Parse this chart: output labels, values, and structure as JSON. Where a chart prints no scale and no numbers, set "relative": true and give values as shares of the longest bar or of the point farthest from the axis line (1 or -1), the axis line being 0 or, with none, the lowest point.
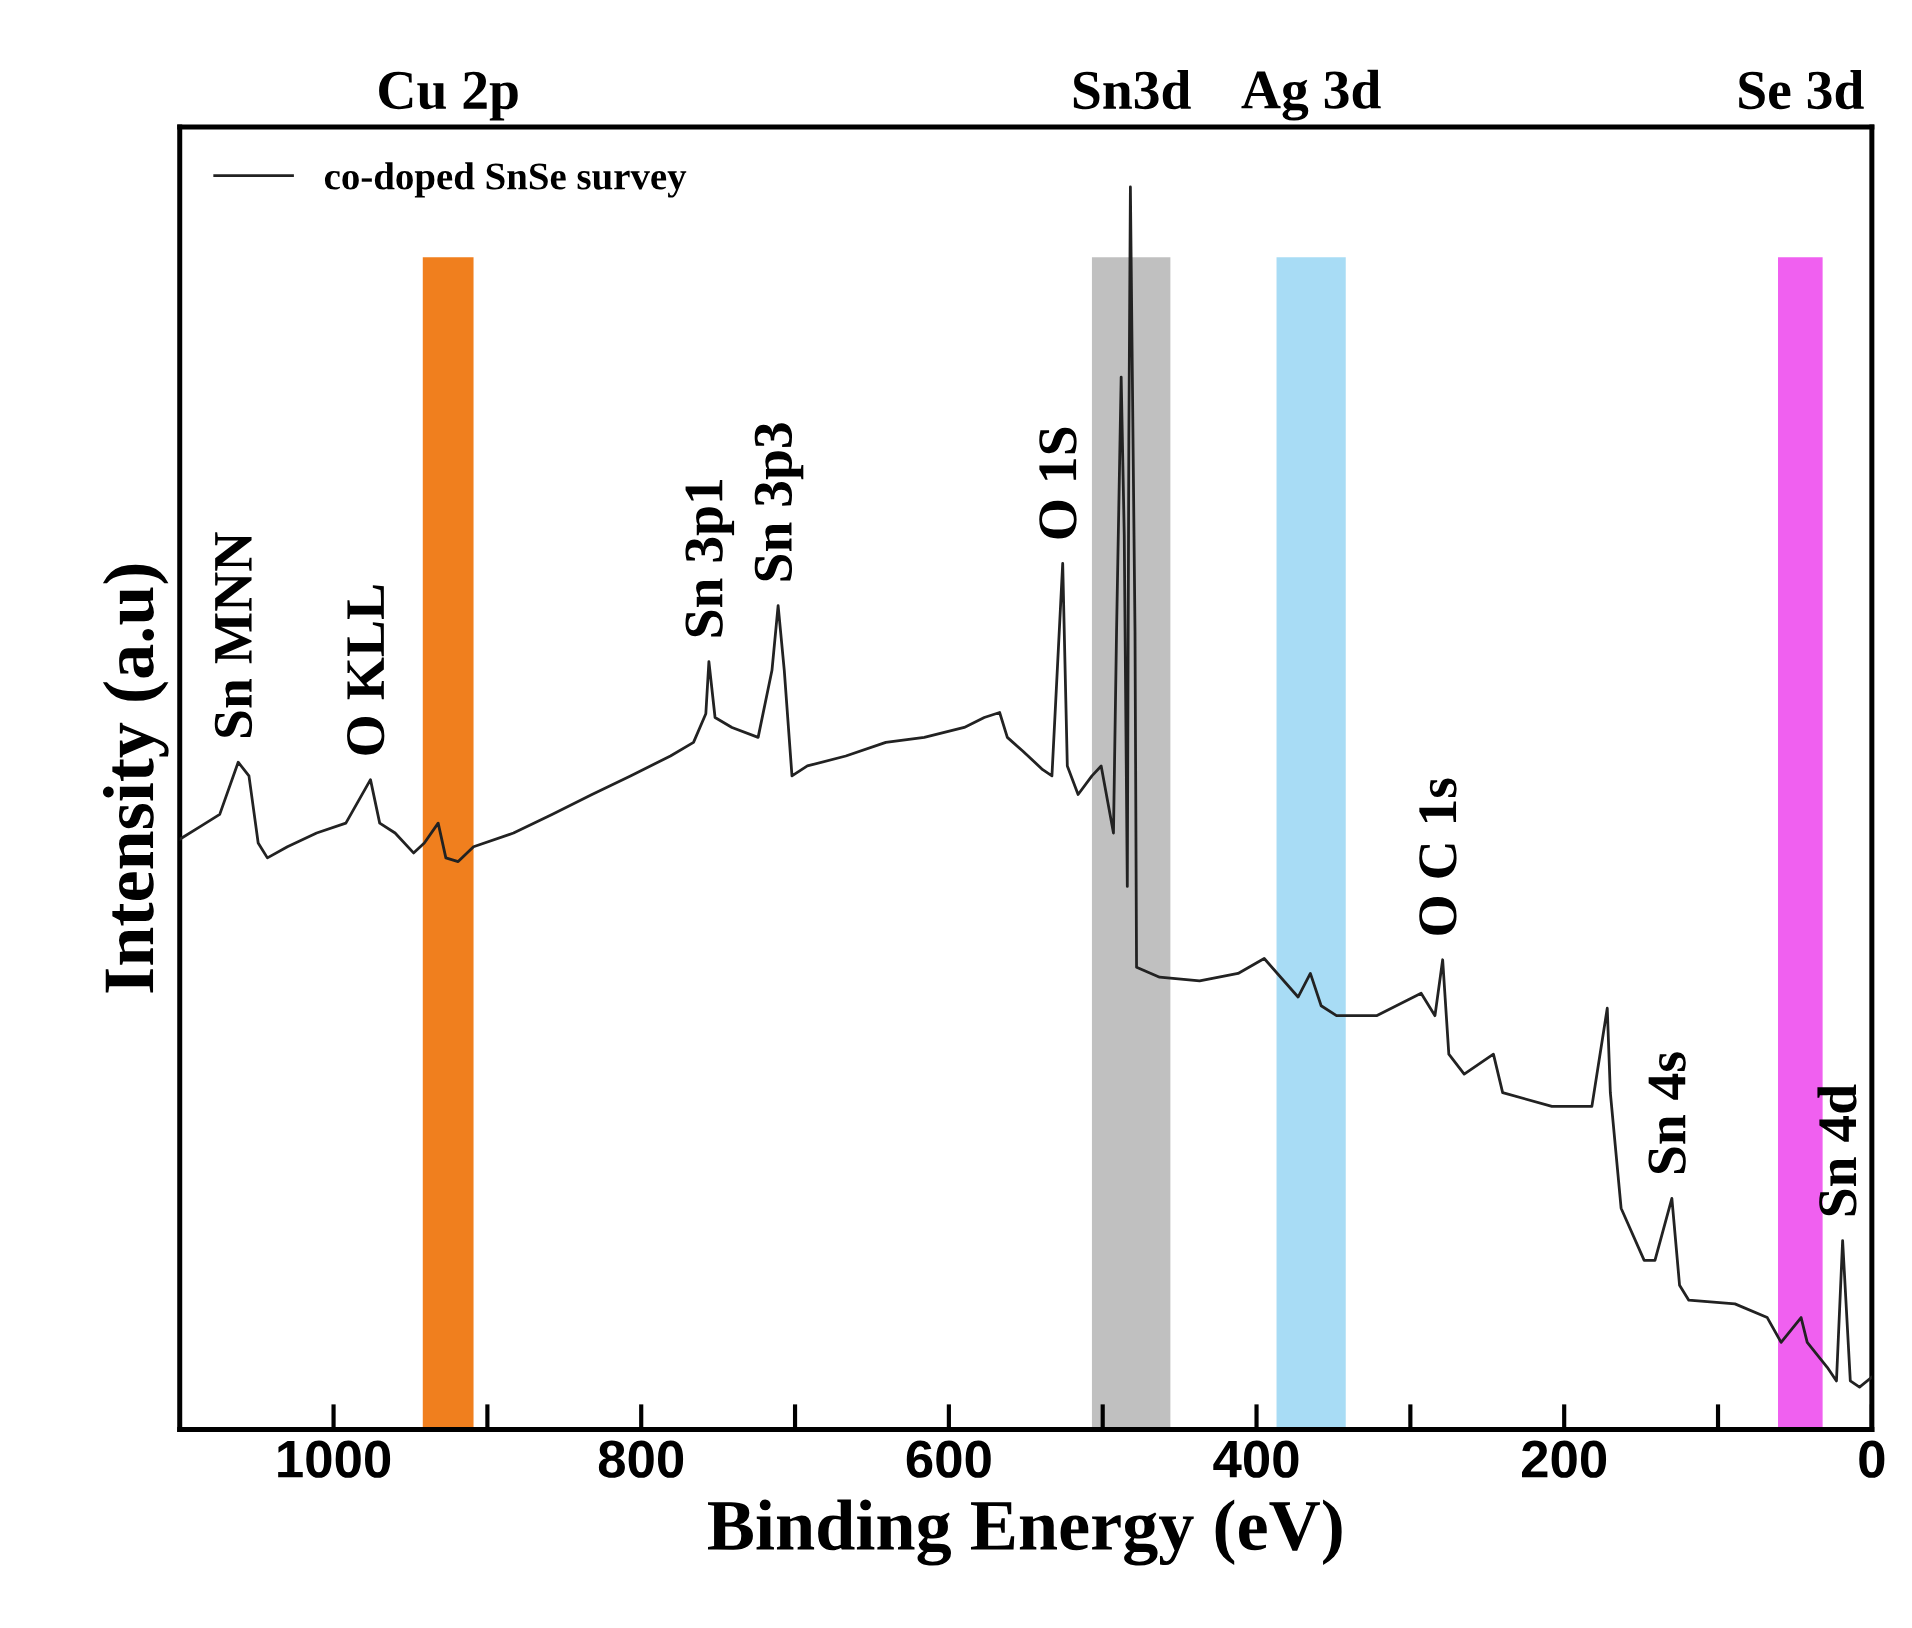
{
  "chart_data": {
    "type": "line",
    "relative": true,
    "xlabel": "Binding Energy (eV)",
    "ylabel": "Intensity (a.u)",
    "xlim": [
      1100,
      0
    ],
    "xticks": [
      1000,
      {
        "value": 900,
        "label": null
      },
      800,
      {
        "value": 700,
        "label": null
      },
      600,
      {
        "value": 500,
        "label": null
      },
      400,
      {
        "value": 300,
        "label": null
      },
      200,
      {
        "value": 100,
        "label": null
      },
      0
    ],
    "legend": "top left",
    "grid": false,
    "marker": "none",
    "line_style": "solid",
    "series": [
      {
        "name": "co-doped SnSe survey",
        "color": "#222222",
        "x": [
          1100,
          1087,
          1074,
          1062,
          1055,
          1049,
          1043,
          1030,
          1011,
          992,
          976,
          970,
          960,
          948,
          941,
          932,
          927,
          919,
          909,
          883,
          858,
          832,
          807,
          781,
          766,
          758,
          756,
          752,
          741,
          724,
          715,
          711,
          707,
          702,
          692,
          667,
          641,
          616,
          590,
          577,
          567,
          562,
          552,
          539,
          533,
          526,
          523,
          516,
          507,
          501,
          493,
          491,
          488,
          486,
          484,
          483,
          482,
          479,
          478,
          463,
          437,
          412,
          395,
          373,
          365,
          358,
          348,
          322,
          293,
          284,
          279,
          275,
          265,
          246,
          240,
          208,
          182,
          172,
          170,
          163,
          148,
          141,
          130,
          125,
          119,
          89,
          68,
          59,
          46,
          42,
          29,
          23,
          19,
          14,
          8,
          0
        ],
        "values": [
          0.475,
          0.485,
          0.495,
          0.537,
          0.526,
          0.472,
          0.46,
          0.469,
          0.48,
          0.488,
          0.523,
          0.488,
          0.48,
          0.464,
          0.472,
          0.488,
          0.46,
          0.457,
          0.469,
          0.48,
          0.495,
          0.511,
          0.526,
          0.542,
          0.553,
          0.576,
          0.618,
          0.573,
          0.565,
          0.557,
          0.611,
          0.663,
          0.611,
          0.526,
          0.534,
          0.542,
          0.553,
          0.557,
          0.565,
          0.573,
          0.577,
          0.557,
          0.546,
          0.531,
          0.526,
          0.697,
          0.534,
          0.511,
          0.526,
          0.534,
          0.48,
          0.642,
          0.847,
          0.72,
          0.437,
          0.797,
          1.0,
          0.642,
          0.372,
          0.364,
          0.361,
          0.367,
          0.379,
          0.348,
          0.367,
          0.341,
          0.333,
          0.333,
          0.351,
          0.333,
          0.378,
          0.302,
          0.286,
          0.302,
          0.271,
          0.26,
          0.26,
          0.339,
          0.271,
          0.178,
          0.136,
          0.136,
          0.186,
          0.116,
          0.104,
          0.101,
          0.09,
          0.07,
          0.09,
          0.07,
          0.05,
          0.039,
          0.152,
          0.039,
          0.034,
          0.042
        ]
      }
    ],
    "bands": [
      {
        "axis": "x",
        "from": 942,
        "to": 909,
        "label": "Cu 2p",
        "color": "#f07f1e"
      },
      {
        "axis": "x",
        "from": 507,
        "to": 456,
        "label": "Sn3d",
        "color": "#c0c0c0"
      },
      {
        "axis": "x",
        "from": 387,
        "to": 342,
        "label": "Ag 3d",
        "color": "#a8dcf5"
      },
      {
        "axis": "x",
        "from": 61,
        "to": 32,
        "label": "Se 3d",
        "color": "#f060f0"
      }
    ],
    "annotations": [
      {
        "text": "Sn MNN",
        "x": 1062,
        "y": 0.537
      },
      {
        "text": "O KLL",
        "x": 976,
        "y": 0.523
      },
      {
        "text": "Sn 3p1",
        "x": 756,
        "y": 0.618
      },
      {
        "text": "Sn 3p3",
        "x": 711,
        "y": 0.663
      },
      {
        "text": "O 1S",
        "x": 526,
        "y": 0.697
      },
      {
        "text": "O C 1s",
        "x": 279,
        "y": 0.378
      },
      {
        "text": "Sn 4s",
        "x": 130,
        "y": 0.186
      },
      {
        "text": "Sn 4d",
        "x": 19,
        "y": 0.152
      }
    ]
  }
}
